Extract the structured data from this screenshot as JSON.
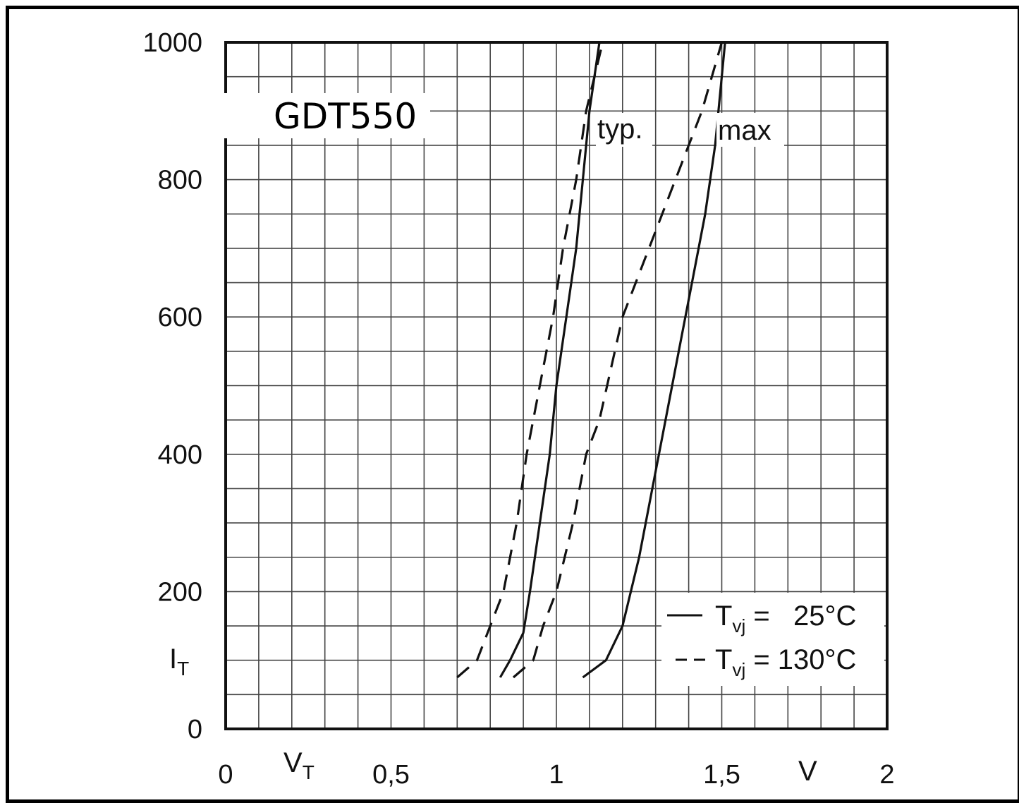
{
  "chart_data": {
    "type": "line",
    "title": "GDT550",
    "xlabel": "V_T",
    "xlabel_main": "V",
    "xlabel_sub": "T",
    "x_unit": "V",
    "ylabel": "I_T",
    "ylabel_main": "I",
    "ylabel_sub": "T",
    "xlim": [
      0,
      2
    ],
    "ylim": [
      0,
      1000
    ],
    "x_ticks": [
      "0",
      "0,5",
      "1",
      "1,5",
      "2"
    ],
    "y_ticks": [
      "0",
      "200",
      "400",
      "600",
      "800",
      "1000"
    ],
    "grid": true,
    "legend_position": "bottom-right",
    "annotations": [
      {
        "text": "typ.",
        "x": 1.12,
        "y": 875
      },
      {
        "text": "max",
        "x": 1.49,
        "y": 875
      }
    ],
    "legend": [
      {
        "symbol": "solid",
        "text_main": "T",
        "text_sub": "vj",
        "text_rest": " =   25°C"
      },
      {
        "symbol": "dashed",
        "text_main": "T",
        "text_sub": "vj",
        "text_rest": " = 130°C"
      }
    ],
    "series": [
      {
        "style": "solid",
        "x": [
          0.83,
          0.86,
          0.9,
          0.92,
          0.95,
          0.98,
          1.0,
          1.03,
          1.06,
          1.08,
          1.1,
          1.13
        ],
        "y": [
          75,
          100,
          140,
          200,
          300,
          400,
          500,
          600,
          700,
          800,
          900,
          1000
        ]
      },
      {
        "style": "dashed",
        "x": [
          0.7,
          0.76,
          0.8,
          0.84,
          0.88,
          0.91,
          0.95,
          0.99,
          1.02,
          1.06,
          1.09,
          1.14
        ],
        "y": [
          75,
          100,
          150,
          200,
          300,
          400,
          500,
          600,
          700,
          800,
          900,
          1000
        ]
      },
      {
        "style": "solid",
        "x": [
          1.08,
          1.15,
          1.2,
          1.25,
          1.29,
          1.33,
          1.37,
          1.41,
          1.45,
          1.48,
          1.5,
          1.51
        ],
        "y": [
          75,
          100,
          150,
          250,
          350,
          450,
          550,
          650,
          750,
          850,
          950,
          1000
        ]
      },
      {
        "style": "dashed",
        "x": [
          0.87,
          0.93,
          0.96,
          1.0,
          1.05,
          1.09,
          1.13,
          1.2,
          1.28,
          1.36,
          1.44,
          1.5
        ],
        "y": [
          75,
          100,
          150,
          200,
          300,
          400,
          450,
          600,
          700,
          800,
          900,
          1000
        ]
      }
    ]
  }
}
